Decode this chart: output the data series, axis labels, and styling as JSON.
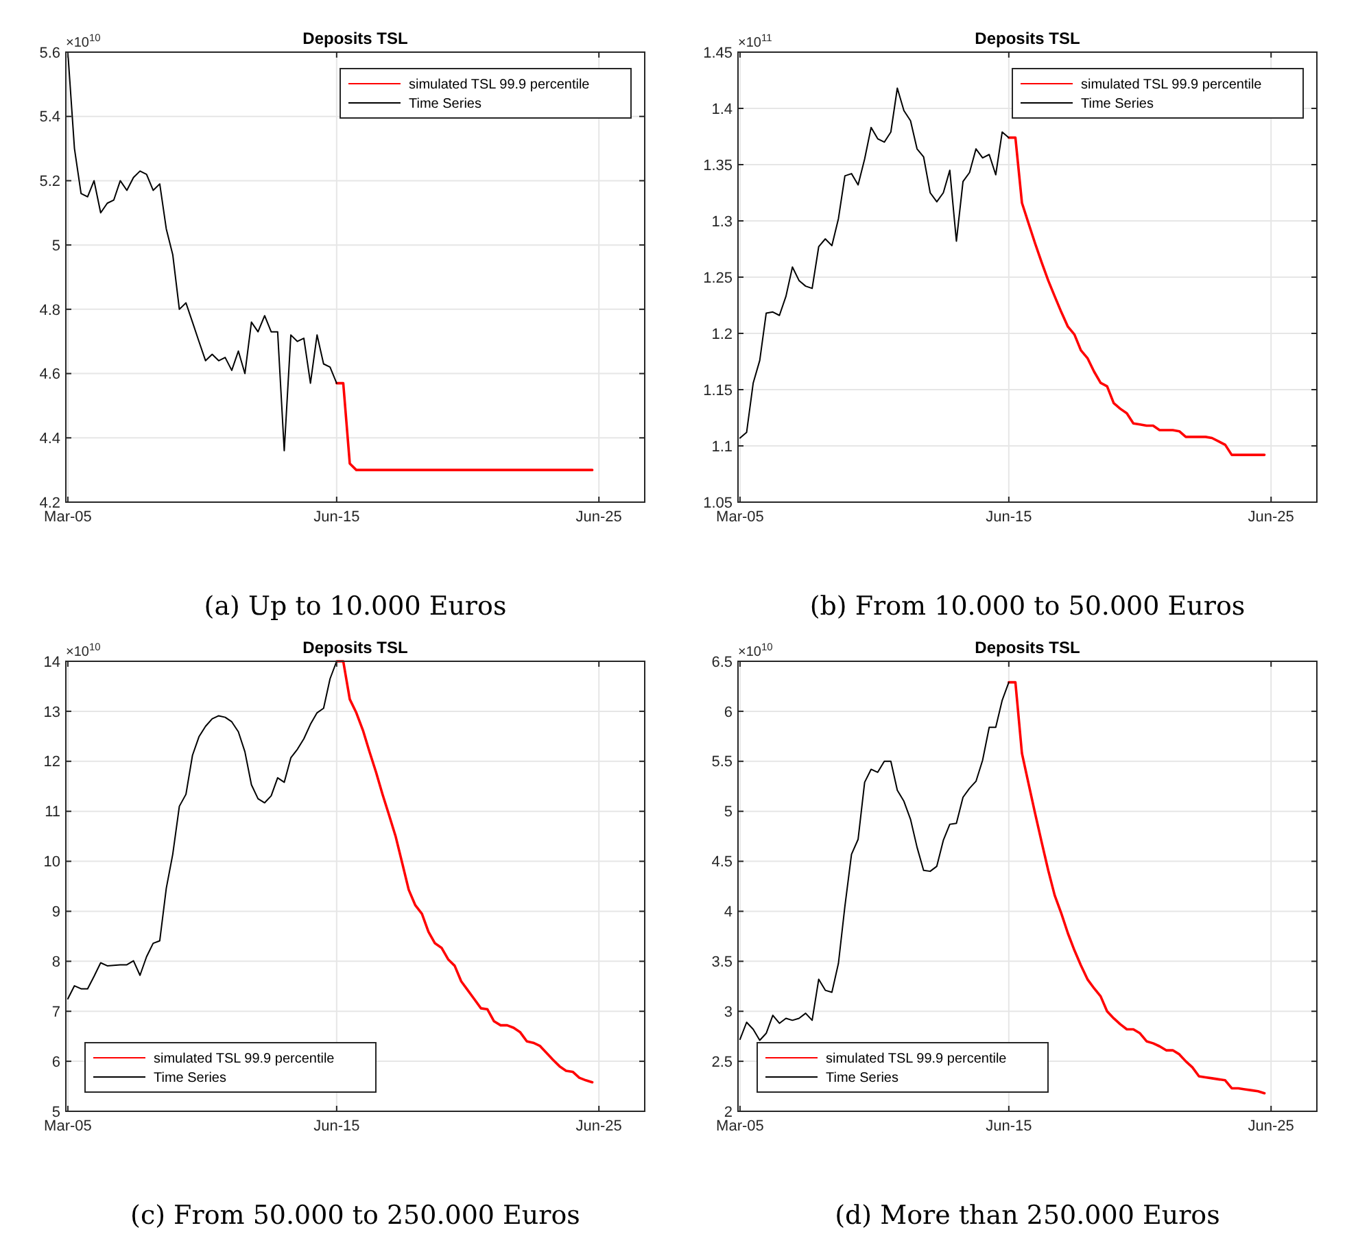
{
  "chart_data": [
    {
      "type": "line",
      "title": "Deposits TSL",
      "subtitle": "(a) Up to 10.000 Euros",
      "annotations": [
        "×10$^{10}$"
      ],
      "grid": true,
      "legend": "top right",
      "xlim": [
        "2005-02",
        "2027-03"
      ],
      "xticks": [
        {
          "value": "2005-03",
          "label": "Mar-05"
        },
        {
          "value": "2015-06",
          "label": "Jun-15"
        },
        {
          "value": "2025-06",
          "label": "Jun-25"
        }
      ],
      "ylim": [
        4.2,
        5.6
      ],
      "yticks": [
        4.2,
        4.4,
        4.6,
        4.8,
        5,
        5.2,
        5.4,
        5.6
      ],
      "series": [
        {
          "name": "simulated TSL 99.9 percentile",
          "color": "#ff0000",
          "x": [
            "2015-06",
            "2015-09",
            "2015-12",
            "2016-03",
            "2016-06",
            "2016-09",
            "2016-12",
            "2017-03",
            "2017-06",
            "2017-09",
            "2017-12",
            "2018-03",
            "2018-06",
            "2018-09",
            "2018-12",
            "2019-03",
            "2019-06",
            "2019-09",
            "2019-12",
            "2020-03",
            "2020-06",
            "2020-09",
            "2020-12",
            "2021-03",
            "2021-06",
            "2021-09",
            "2021-12",
            "2022-03",
            "2022-06",
            "2022-09",
            "2022-12",
            "2023-03",
            "2023-06",
            "2023-09",
            "2023-12",
            "2024-03",
            "2024-06",
            "2024-09",
            "2024-12",
            "2025-03"
          ],
          "values": [
            4.57,
            4.57,
            4.32,
            4.3,
            4.3,
            4.3,
            4.3,
            4.3,
            4.3,
            4.3,
            4.3,
            4.3,
            4.3,
            4.3,
            4.3,
            4.3,
            4.3,
            4.3,
            4.3,
            4.3,
            4.3,
            4.3,
            4.3,
            4.3,
            4.3,
            4.3,
            4.3,
            4.3,
            4.3,
            4.3,
            4.3,
            4.3,
            4.3,
            4.3,
            4.3,
            4.3,
            4.3,
            4.3,
            4.3,
            4.3
          ]
        },
        {
          "name": "Time Series",
          "color": "#000000",
          "x": [
            "2005-03",
            "2005-06",
            "2005-09",
            "2005-12",
            "2006-03",
            "2006-06",
            "2006-09",
            "2006-12",
            "2007-03",
            "2007-06",
            "2007-09",
            "2007-12",
            "2008-03",
            "2008-06",
            "2008-09",
            "2008-12",
            "2009-03",
            "2009-06",
            "2009-09",
            "2009-12",
            "2010-03",
            "2010-06",
            "2010-09",
            "2010-12",
            "2011-03",
            "2011-06",
            "2011-09",
            "2011-12",
            "2012-03",
            "2012-06",
            "2012-09",
            "2012-12",
            "2013-03",
            "2013-06",
            "2013-09",
            "2013-12",
            "2014-03",
            "2014-06",
            "2014-09",
            "2014-12",
            "2015-03",
            "2015-06"
          ],
          "values": [
            5.6,
            5.3,
            5.16,
            5.15,
            5.2,
            5.1,
            5.13,
            5.14,
            5.2,
            5.17,
            5.21,
            5.23,
            5.22,
            5.17,
            5.19,
            5.05,
            4.97,
            4.8,
            4.82,
            4.76,
            4.7,
            4.64,
            4.66,
            4.64,
            4.65,
            4.61,
            4.67,
            4.6,
            4.76,
            4.73,
            4.78,
            4.73,
            4.73,
            4.36,
            4.72,
            4.7,
            4.71,
            4.57,
            4.72,
            4.63,
            4.62,
            4.57
          ]
        }
      ]
    },
    {
      "type": "line",
      "title": "Deposits TSL",
      "subtitle": "(b) From 10.000 to 50.000 Euros",
      "annotations": [
        "×10$^{11}$"
      ],
      "grid": true,
      "legend": "top right",
      "xlim": [
        "2005-02",
        "2027-03"
      ],
      "xticks": [
        {
          "value": "2005-03",
          "label": "Mar-05"
        },
        {
          "value": "2015-06",
          "label": "Jun-15"
        },
        {
          "value": "2025-06",
          "label": "Jun-25"
        }
      ],
      "ylim": [
        1.05,
        1.45
      ],
      "yticks": [
        1.05,
        1.1,
        1.15,
        1.2,
        1.25,
        1.3,
        1.35,
        1.4,
        1.45
      ],
      "series": [
        {
          "name": "simulated TSL 99.9 percentile",
          "color": "#ff0000",
          "x": [
            "2015-06",
            "2015-09",
            "2015-12",
            "2016-03",
            "2016-06",
            "2016-09",
            "2016-12",
            "2017-03",
            "2017-06",
            "2017-09",
            "2017-12",
            "2018-03",
            "2018-06",
            "2018-09",
            "2018-12",
            "2019-03",
            "2019-06",
            "2019-09",
            "2019-12",
            "2020-03",
            "2020-06",
            "2020-09",
            "2020-12",
            "2021-03",
            "2021-06",
            "2021-09",
            "2021-12",
            "2022-03",
            "2022-06",
            "2022-09",
            "2022-12",
            "2023-03",
            "2023-06",
            "2023-09",
            "2023-12",
            "2024-03",
            "2024-06",
            "2024-09",
            "2024-12",
            "2025-03"
          ],
          "values": [
            1.374,
            1.374,
            1.316,
            1.298,
            1.28,
            1.263,
            1.247,
            1.233,
            1.219,
            1.206,
            1.199,
            1.185,
            1.178,
            1.166,
            1.156,
            1.153,
            1.138,
            1.133,
            1.129,
            1.12,
            1.119,
            1.118,
            1.118,
            1.114,
            1.114,
            1.114,
            1.113,
            1.108,
            1.108,
            1.108,
            1.108,
            1.107,
            1.104,
            1.101,
            1.092,
            1.092,
            1.092,
            1.092,
            1.092,
            1.092
          ]
        },
        {
          "name": "Time Series",
          "color": "#000000",
          "x": [
            "2005-03",
            "2005-06",
            "2005-09",
            "2005-12",
            "2006-03",
            "2006-06",
            "2006-09",
            "2006-12",
            "2007-03",
            "2007-06",
            "2007-09",
            "2007-12",
            "2008-03",
            "2008-06",
            "2008-09",
            "2008-12",
            "2009-03",
            "2009-06",
            "2009-09",
            "2009-12",
            "2010-03",
            "2010-06",
            "2010-09",
            "2010-12",
            "2011-03",
            "2011-06",
            "2011-09",
            "2011-12",
            "2012-03",
            "2012-06",
            "2012-09",
            "2012-12",
            "2013-03",
            "2013-06",
            "2013-09",
            "2013-12",
            "2014-03",
            "2014-06",
            "2014-09",
            "2014-12",
            "2015-03",
            "2015-06"
          ],
          "values": [
            1.107,
            1.112,
            1.156,
            1.176,
            1.218,
            1.219,
            1.216,
            1.233,
            1.259,
            1.247,
            1.242,
            1.24,
            1.277,
            1.284,
            1.278,
            1.302,
            1.34,
            1.342,
            1.332,
            1.355,
            1.383,
            1.373,
            1.37,
            1.379,
            1.418,
            1.398,
            1.389,
            1.364,
            1.357,
            1.325,
            1.317,
            1.325,
            1.345,
            1.282,
            1.335,
            1.343,
            1.364,
            1.356,
            1.359,
            1.341,
            1.379,
            1.374
          ]
        }
      ]
    },
    {
      "type": "line",
      "title": "Deposits TSL",
      "subtitle": "(c) From 50.000 to 250.000 Euros",
      "annotations": [
        "×10$^{10}$"
      ],
      "grid": true,
      "legend": "bottom left",
      "xlim": [
        "2005-02",
        "2027-03"
      ],
      "xticks": [
        {
          "value": "2005-03",
          "label": "Mar-05"
        },
        {
          "value": "2015-06",
          "label": "Jun-15"
        },
        {
          "value": "2025-06",
          "label": "Jun-25"
        }
      ],
      "ylim": [
        5,
        14
      ],
      "yticks": [
        5,
        6,
        7,
        8,
        9,
        10,
        11,
        12,
        13,
        14
      ],
      "series": [
        {
          "name": "simulated TSL 99.9 percentile",
          "color": "#ff0000",
          "x": [
            "2015-06",
            "2015-09",
            "2015-12",
            "2016-03",
            "2016-06",
            "2016-09",
            "2016-12",
            "2017-03",
            "2017-06",
            "2017-09",
            "2017-12",
            "2018-03",
            "2018-06",
            "2018-09",
            "2018-12",
            "2019-03",
            "2019-06",
            "2019-09",
            "2019-12",
            "2020-03",
            "2020-06",
            "2020-09",
            "2020-12",
            "2021-03",
            "2021-06",
            "2021-09",
            "2021-12",
            "2022-03",
            "2022-06",
            "2022-09",
            "2022-12",
            "2023-03",
            "2023-06",
            "2023-09",
            "2023-12",
            "2024-03",
            "2024-06",
            "2024-09",
            "2024-12",
            "2025-03"
          ],
          "values": [
            14.0,
            14.0,
            13.24,
            12.97,
            12.62,
            12.19,
            11.78,
            11.34,
            10.92,
            10.49,
            9.96,
            9.43,
            9.12,
            8.95,
            8.59,
            8.36,
            8.27,
            8.04,
            7.91,
            7.6,
            7.42,
            7.24,
            7.06,
            7.04,
            6.8,
            6.72,
            6.72,
            6.67,
            6.58,
            6.4,
            6.37,
            6.31,
            6.17,
            6.03,
            5.9,
            5.81,
            5.79,
            5.67,
            5.62,
            5.58
          ]
        },
        {
          "name": "Time Series",
          "color": "#000000",
          "x": [
            "2005-03",
            "2005-06",
            "2005-09",
            "2005-12",
            "2006-03",
            "2006-06",
            "2006-09",
            "2006-12",
            "2007-03",
            "2007-06",
            "2007-09",
            "2007-12",
            "2008-03",
            "2008-06",
            "2008-09",
            "2008-12",
            "2009-03",
            "2009-06",
            "2009-09",
            "2009-12",
            "2010-03",
            "2010-06",
            "2010-09",
            "2010-12",
            "2011-03",
            "2011-06",
            "2011-09",
            "2011-12",
            "2012-03",
            "2012-06",
            "2012-09",
            "2012-12",
            "2013-03",
            "2013-06",
            "2013-09",
            "2013-12",
            "2014-03",
            "2014-06",
            "2014-09",
            "2014-12",
            "2015-03",
            "2015-06"
          ],
          "values": [
            7.25,
            7.51,
            7.45,
            7.45,
            7.7,
            7.97,
            7.91,
            7.92,
            7.93,
            7.93,
            8.01,
            7.72,
            8.09,
            8.36,
            8.41,
            9.46,
            10.14,
            11.1,
            11.34,
            12.12,
            12.49,
            12.7,
            12.85,
            12.91,
            12.88,
            12.79,
            12.59,
            12.19,
            11.53,
            11.25,
            11.17,
            11.31,
            11.67,
            11.58,
            12.07,
            12.24,
            12.45,
            12.74,
            12.97,
            13.06,
            13.65,
            14.0
          ]
        }
      ]
    },
    {
      "type": "line",
      "title": "Deposits TSL",
      "subtitle": "(d) More than 250.000 Euros",
      "annotations": [
        "×10$^{10}$"
      ],
      "grid": true,
      "legend": "bottom left",
      "xlim": [
        "2005-02",
        "2027-03"
      ],
      "xticks": [
        {
          "value": "2005-03",
          "label": "Mar-05"
        },
        {
          "value": "2015-06",
          "label": "Jun-15"
        },
        {
          "value": "2025-06",
          "label": "Jun-25"
        }
      ],
      "ylim": [
        2,
        6.5
      ],
      "yticks": [
        2,
        2.5,
        3,
        3.5,
        4,
        4.5,
        5,
        5.5,
        6,
        6.5
      ],
      "series": [
        {
          "name": "simulated TSL 99.9 percentile",
          "color": "#ff0000",
          "x": [
            "2015-06",
            "2015-09",
            "2015-12",
            "2016-03",
            "2016-06",
            "2016-09",
            "2016-12",
            "2017-03",
            "2017-06",
            "2017-09",
            "2017-12",
            "2018-03",
            "2018-06",
            "2018-09",
            "2018-12",
            "2019-03",
            "2019-06",
            "2019-09",
            "2019-12",
            "2020-03",
            "2020-06",
            "2020-09",
            "2020-12",
            "2021-03",
            "2021-06",
            "2021-09",
            "2021-12",
            "2022-03",
            "2022-06",
            "2022-09",
            "2022-12",
            "2023-03",
            "2023-06",
            "2023-09",
            "2023-12",
            "2024-03",
            "2024-06",
            "2024-09",
            "2024-12",
            "2025-03"
          ],
          "values": [
            6.29,
            6.29,
            5.58,
            5.28,
            4.98,
            4.69,
            4.41,
            4.16,
            3.98,
            3.78,
            3.61,
            3.46,
            3.32,
            3.23,
            3.15,
            3.0,
            2.93,
            2.87,
            2.82,
            2.82,
            2.78,
            2.7,
            2.68,
            2.65,
            2.61,
            2.61,
            2.57,
            2.5,
            2.44,
            2.35,
            2.34,
            2.33,
            2.32,
            2.31,
            2.23,
            2.23,
            2.22,
            2.21,
            2.2,
            2.18
          ]
        },
        {
          "name": "Time Series",
          "color": "#000000",
          "x": [
            "2005-03",
            "2005-06",
            "2005-09",
            "2005-12",
            "2006-03",
            "2006-06",
            "2006-09",
            "2006-12",
            "2007-03",
            "2007-06",
            "2007-09",
            "2007-12",
            "2008-03",
            "2008-06",
            "2008-09",
            "2008-12",
            "2009-03",
            "2009-06",
            "2009-09",
            "2009-12",
            "2010-03",
            "2010-06",
            "2010-09",
            "2010-12",
            "2011-03",
            "2011-06",
            "2011-09",
            "2011-12",
            "2012-03",
            "2012-06",
            "2012-09",
            "2012-12",
            "2013-03",
            "2013-06",
            "2013-09",
            "2013-12",
            "2014-03",
            "2014-06",
            "2014-09",
            "2014-12",
            "2015-03",
            "2015-06"
          ],
          "values": [
            2.72,
            2.89,
            2.82,
            2.71,
            2.78,
            2.96,
            2.88,
            2.93,
            2.91,
            2.93,
            2.98,
            2.91,
            3.32,
            3.21,
            3.19,
            3.48,
            4.05,
            4.57,
            4.72,
            5.29,
            5.42,
            5.39,
            5.5,
            5.5,
            5.21,
            5.1,
            4.92,
            4.64,
            4.41,
            4.4,
            4.45,
            4.71,
            4.87,
            4.88,
            5.14,
            5.23,
            5.3,
            5.51,
            5.84,
            5.84,
            6.11,
            6.29
          ]
        }
      ]
    }
  ]
}
